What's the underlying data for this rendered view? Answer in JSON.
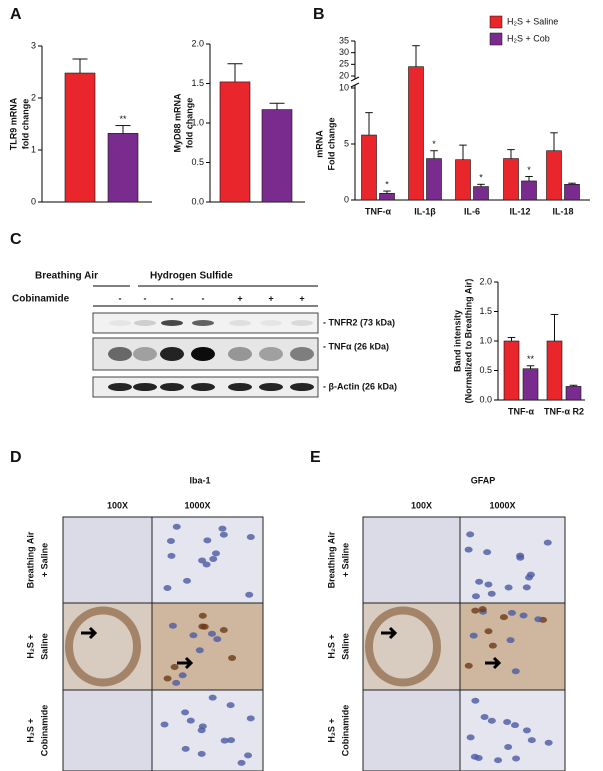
{
  "panels": {
    "a": "A",
    "b": "B",
    "c": "C",
    "d": "D",
    "e": "E"
  },
  "chart_data": [
    {
      "type": "bar",
      "y_label": "TLR9 mRNA",
      "y_sublabel": "fold change",
      "categories": [
        null,
        null
      ],
      "values": [
        2.48,
        1.32
      ],
      "errors": [
        0.27,
        0.15
      ],
      "colors": [
        "#e8262b",
        "#7a2c8e"
      ],
      "annotations": [
        null,
        "**"
      ],
      "ylim": [
        0,
        3
      ],
      "yticks": [
        0,
        1,
        2,
        3
      ]
    },
    {
      "type": "bar",
      "y_label": "MyD88 mRNA",
      "y_sublabel": "fold change",
      "categories": [
        null,
        null
      ],
      "values": [
        1.52,
        1.17
      ],
      "errors": [
        0.23,
        0.08
      ],
      "colors": [
        "#e8262b",
        "#7a2c8e"
      ],
      "ylim": [
        0,
        2
      ],
      "yticks": [
        {
          "value": 0,
          "label": "0.0"
        },
        {
          "value": 0.5,
          "label": "0.5"
        },
        {
          "value": 1,
          "label": "1.0"
        },
        {
          "value": 1.5,
          "label": "1.5"
        },
        {
          "value": 2,
          "label": "2.0"
        }
      ]
    },
    {
      "type": "bar",
      "y_label": "mRNA",
      "y_sublabel": "Fold change",
      "categories": [
        "TNF-α",
        "IL-1β",
        "IL-6",
        "IL-12",
        "IL-18"
      ],
      "series": [
        {
          "name": "H₂S + Saline",
          "color": "#e8262b",
          "values": [
            5.8,
            24,
            3.6,
            3.7,
            4.4
          ],
          "errors": [
            2.0,
            9,
            1.3,
            0.8,
            1.6
          ]
        },
        {
          "name": "H₂S + Cob",
          "color": "#7a2c8e",
          "values": [
            0.6,
            3.7,
            1.2,
            1.7,
            1.4
          ],
          "errors": [
            0.2,
            0.7,
            0.2,
            0.4,
            0.1
          ],
          "annotations": [
            "*",
            "*",
            "*",
            "*",
            null
          ]
        }
      ],
      "ylim": [
        0,
        35
      ],
      "axis_break": [
        10,
        20
      ],
      "yticks": [
        0,
        5,
        10,
        20,
        25,
        30,
        35
      ],
      "legend": "top-right"
    },
    {
      "type": "bar",
      "y_label": "Band intensity",
      "y_sublabel": "(Normalized to Breathing Air)",
      "categories": [
        "TNF-α",
        "TNF-α R2"
      ],
      "series": [
        {
          "color": "#e8262b",
          "values": [
            1.0,
            1.0
          ],
          "errors": [
            0.06,
            0.45
          ]
        },
        {
          "color": "#7a2c8e",
          "values": [
            0.53,
            0.23
          ],
          "errors": [
            0.05,
            0.02
          ],
          "annotations": [
            "**",
            null
          ]
        }
      ],
      "ylim": [
        0,
        2
      ],
      "yticks": [
        {
          "value": 0,
          "label": "0.0"
        },
        {
          "value": 0.5,
          "label": "0.5"
        },
        {
          "value": 1,
          "label": "1.0"
        },
        {
          "value": 1.5,
          "label": "1.5"
        },
        {
          "value": 2,
          "label": "2.0"
        }
      ]
    }
  ],
  "blot": {
    "groups": [
      "Breathing Air",
      "Hydrogen Sulfide"
    ],
    "treatment": "Cobinamide",
    "lanes": [
      "-",
      "-",
      "-",
      "-",
      "+",
      "+",
      "+"
    ],
    "bands": [
      "- TNFR2 (73 kDa)",
      "- TNFα (26 kDa)",
      "- β-Actin (26 kDa)"
    ]
  },
  "histology": [
    {
      "stain": "Iba-1",
      "columns": [
        "100X",
        "1000X"
      ],
      "rows": [
        [
          "Breathing Air",
          "+ Saline"
        ],
        [
          "H₂S +",
          "Saline"
        ],
        [
          "H₂S +",
          "Cobinamide"
        ]
      ]
    },
    {
      "stain": "GFAP",
      "columns": [
        "100X",
        "1000X"
      ],
      "rows": [
        [
          "Breathing Air",
          "+ Saline"
        ],
        [
          "H₂S +",
          "Saline"
        ],
        [
          "H₂S +",
          "Cobinamide"
        ]
      ]
    }
  ]
}
